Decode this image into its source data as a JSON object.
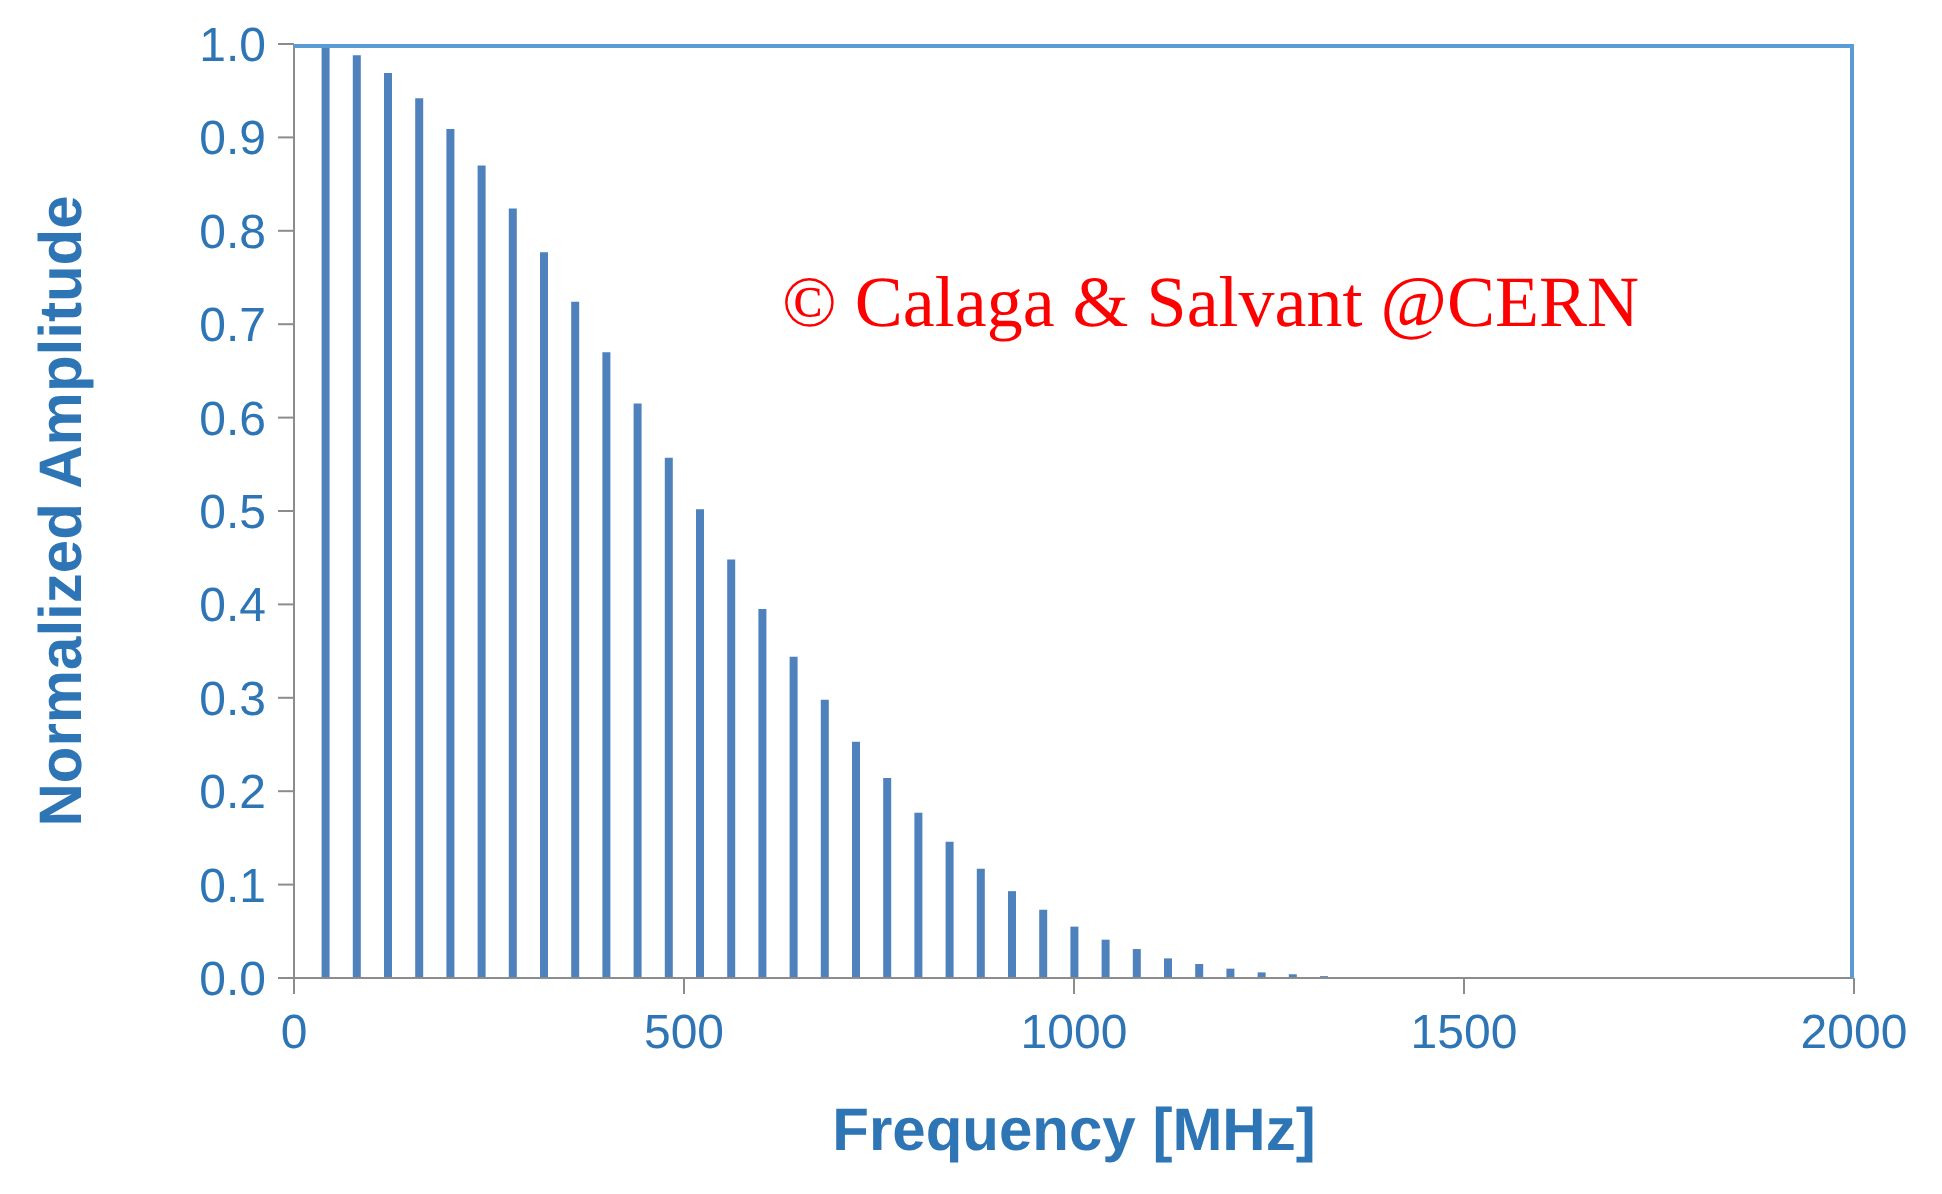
{
  "chart_data": {
    "type": "bar",
    "xlabel": "Frequency [MHz]",
    "ylabel": "Normalized Amplitude",
    "color": "#4f81bd",
    "x": [
      40,
      80,
      120,
      160,
      200,
      240,
      280,
      320,
      360,
      400,
      440,
      480,
      520,
      560,
      600,
      640,
      680,
      720,
      760,
      800,
      840,
      880,
      920,
      960,
      1000,
      1040,
      1080,
      1120,
      1160,
      1200,
      1240,
      1280,
      1320
    ],
    "values": [
      1.0,
      0.988,
      0.969,
      0.942,
      0.909,
      0.87,
      0.824,
      0.777,
      0.724,
      0.67,
      0.615,
      0.557,
      0.502,
      0.448,
      0.395,
      0.344,
      0.298,
      0.253,
      0.214,
      0.177,
      0.146,
      0.117,
      0.093,
      0.073,
      0.055,
      0.041,
      0.031,
      0.021,
      0.015,
      0.01,
      0.006,
      0.004,
      0.002
    ],
    "xlim": [
      0,
      2000
    ],
    "xticks": [
      0,
      500,
      1000,
      1500,
      2000
    ],
    "ylim": [
      0,
      1
    ],
    "yticks": [
      {
        "value": 0,
        "label": "0.0"
      },
      0.1,
      0.2,
      0.3,
      0.4,
      0.5,
      0.6,
      0.7,
      0.8,
      0.9,
      {
        "value": 1,
        "label": "1.0"
      }
    ],
    "annotations": [
      "© Calaga & Salvant @CERN"
    ]
  }
}
